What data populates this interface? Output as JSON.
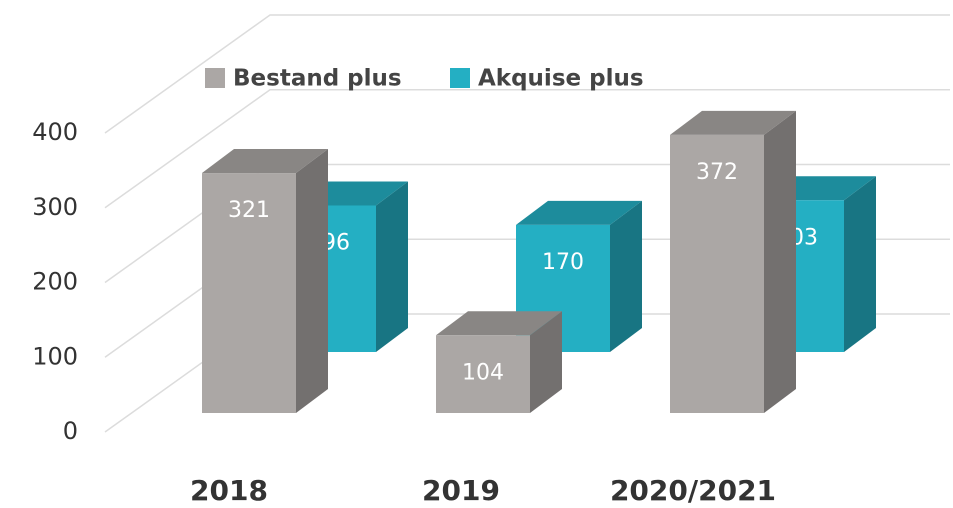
{
  "chart_data": {
    "type": "bar3d",
    "categories": [
      "2018",
      "2019",
      "2020/2021"
    ],
    "series": [
      {
        "name": "Bestand plus",
        "color": "#aba7a5",
        "values": [
          321,
          104,
          372
        ]
      },
      {
        "name": "Akquise plus",
        "color": "#24afc3",
        "values": [
          196,
          170,
          203
        ]
      }
    ],
    "ylim": [
      0,
      400
    ],
    "yticks": [
      0,
      100,
      200,
      300,
      400
    ],
    "grid": true,
    "legend": "top"
  }
}
